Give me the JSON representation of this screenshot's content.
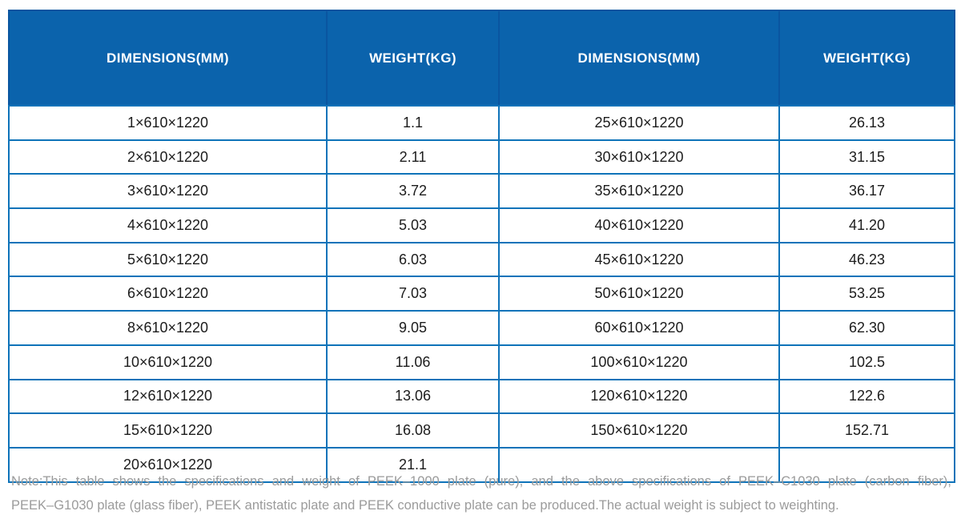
{
  "table": {
    "headers": [
      "DIMENSIONS(MM)",
      "WEIGHT(KG)",
      "DIMENSIONS(MM)",
      "WEIGHT(KG)"
    ],
    "rows": [
      [
        "1×610×1220",
        "1.1",
        "25×610×1220",
        "26.13"
      ],
      [
        "2×610×1220",
        "2.11",
        "30×610×1220",
        "31.15"
      ],
      [
        "3×610×1220",
        "3.72",
        "35×610×1220",
        "36.17"
      ],
      [
        "4×610×1220",
        "5.03",
        "40×610×1220",
        "41.20"
      ],
      [
        "5×610×1220",
        "6.03",
        "45×610×1220",
        "46.23"
      ],
      [
        "6×610×1220",
        "7.03",
        "50×610×1220",
        "53.25"
      ],
      [
        "8×610×1220",
        "9.05",
        "60×610×1220",
        "62.30"
      ],
      [
        "10×610×1220",
        "11.06",
        "100×610×1220",
        "102.5"
      ],
      [
        "12×610×1220",
        "13.06",
        "120×610×1220",
        "122.6"
      ],
      [
        "15×610×1220",
        "16.08",
        "150×610×1220",
        "152.71"
      ],
      [
        "20×610×1220",
        "21.1",
        "",
        ""
      ]
    ]
  },
  "note": {
    "line1": "Note:This table shows the specifications and weight of PEEK–1000 plate (pure), and the above specifications of PEEK–C1030 plate (carbon fiber),",
    "line2": "PEEK–G1030 plate (glass fiber), PEEK antistatic plate and PEEK conductive plate can be produced.The actual weight is subject to weighting."
  },
  "colors": {
    "header_bg": "#0b63ac",
    "header_divider": "#0a55a0",
    "grid_border": "#0e73b9",
    "cell_text": "#1c1c1c",
    "note_text": "#9b9b9b"
  }
}
